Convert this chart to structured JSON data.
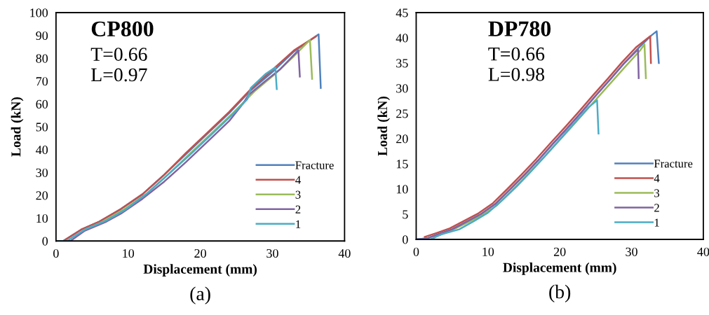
{
  "chart_data": [
    {
      "type": "line",
      "title": "CP800",
      "xlabel": "Displacement (mm)",
      "ylabel": "Load (kN)",
      "annotations": [
        "T=0.66",
        "L=0.97",
        "(a)"
      ],
      "xlim": [
        0,
        40
      ],
      "xticks": [
        0,
        10,
        20,
        30,
        40
      ],
      "ylim": [
        0,
        100
      ],
      "yticks": [
        0,
        10,
        20,
        30,
        40,
        50,
        60,
        70,
        80,
        90,
        100
      ],
      "grid": false,
      "legend": "bottom right",
      "marker": "none",
      "line_style": "solid",
      "series": [
        {
          "name": "Fracture",
          "color": "#4f81bd",
          "x": [
            0,
            1,
            3.5,
            6,
            9,
            12,
            15,
            18,
            21,
            24,
            27,
            30,
            33,
            36.4,
            36.7
          ],
          "values": [
            0,
            0,
            5,
            8.5,
            14,
            20.5,
            29,
            38,
            47,
            56,
            66,
            74,
            83,
            90.5,
            67
          ]
        },
        {
          "name": "4",
          "color": "#c0504d",
          "x": [
            0,
            1,
            3.5,
            6,
            9,
            12,
            15,
            18,
            21,
            24,
            27,
            30,
            33,
            36
          ],
          "values": [
            0,
            0,
            5,
            8.5,
            14,
            20.5,
            29,
            38.5,
            47.5,
            56.5,
            66.5,
            75,
            83.5,
            89.5
          ]
        },
        {
          "name": "3",
          "color": "#9bbb59",
          "x": [
            4,
            6.5,
            9.5,
            12.5,
            15.5,
            18.5,
            21.5,
            24.5,
            27.5,
            30.5,
            33,
            35.2,
            35.5
          ],
          "values": [
            5,
            8.5,
            14,
            20.5,
            29,
            38,
            47,
            56,
            65.5,
            73.5,
            81,
            88,
            71
          ]
        },
        {
          "name": "2",
          "color": "#8064a2",
          "x": [
            0,
            2,
            4,
            7,
            9,
            12,
            15,
            18,
            21,
            24,
            26,
            26.7,
            29,
            31,
            33.6,
            33.8
          ],
          "values": [
            0,
            0,
            4.5,
            8.5,
            12,
            18.5,
            26,
            34.5,
            43.5,
            52.5,
            60.5,
            64,
            70,
            75,
            83.5,
            72
          ]
        },
        {
          "name": "1",
          "color": "#4bacc6",
          "x": [
            0,
            1.5,
            4,
            7,
            9.5,
            12.5,
            15.5,
            18.5,
            21.5,
            24.5,
            26.5,
            27,
            29,
            30.4,
            30.6
          ],
          "values": [
            0,
            0,
            5,
            9,
            13.5,
            20.5,
            29,
            37.5,
            46.5,
            55.5,
            62,
            67,
            73,
            76,
            66.5
          ]
        }
      ]
    },
    {
      "type": "line",
      "title": "DP780",
      "xlabel": "Displacement (mm)",
      "ylabel": "Load (kN)",
      "annotations": [
        "T=0.66",
        "L=0.98",
        "(b)"
      ],
      "xlim": [
        0,
        40
      ],
      "xticks": [
        0,
        10,
        20,
        30,
        40
      ],
      "ylim": [
        0,
        45
      ],
      "yticks": [
        0,
        5,
        10,
        15,
        20,
        25,
        30,
        35,
        40,
        45
      ],
      "grid": false,
      "legend": "bottom right",
      "marker": "none",
      "line_style": "solid",
      "series": [
        {
          "name": "Fracture",
          "color": "#4f81bd",
          "x": [
            0,
            1.5,
            3,
            5,
            7,
            9,
            11,
            13,
            15,
            17,
            19,
            21,
            23,
            25,
            27,
            29,
            31,
            32.7,
            33.5,
            33.8
          ],
          "values": [
            0,
            0.2,
            1,
            2,
            3.5,
            5,
            7,
            9.8,
            12.7,
            15.7,
            18.9,
            22,
            25.2,
            28.5,
            31.7,
            35,
            38,
            40.4,
            41.3,
            35
          ]
        },
        {
          "name": "4",
          "color": "#c0504d",
          "x": [
            1.2,
            2.7,
            4.7,
            6.7,
            8.7,
            10.7,
            12.7,
            14.7,
            16.7,
            18.7,
            20.7,
            22.7,
            24.7,
            26.7,
            28.7,
            30.7,
            32.6,
            32.7
          ],
          "values": [
            0.5,
            1.2,
            2.2,
            3.7,
            5.2,
            7.2,
            10,
            12.9,
            15.9,
            19.1,
            22.2,
            25.4,
            28.7,
            31.9,
            35.2,
            38.2,
            40.3,
            35
          ]
        },
        {
          "name": "3",
          "color": "#9bbb59",
          "x": [
            2.5,
            3.5,
            5.2,
            7.2,
            9.2,
            11.2,
            13.2,
            15.2,
            17.2,
            19.2,
            21.2,
            23.2,
            25.2,
            27.2,
            29.2,
            31.2,
            31.8,
            32
          ],
          "values": [
            0.5,
            1,
            2,
            3.4,
            4.8,
            6.7,
            9.5,
            12.4,
            15.4,
            18.5,
            21.6,
            24.8,
            28,
            31.2,
            34.4,
            37.5,
            38.7,
            32
          ]
        },
        {
          "name": "2",
          "color": "#8064a2",
          "x": [
            0,
            1.5,
            3,
            5,
            7,
            9,
            11,
            13,
            15,
            17,
            19,
            21,
            23,
            25,
            27,
            29,
            30.9,
            31
          ],
          "values": [
            0,
            0.2,
            1,
            2,
            3.5,
            5,
            7,
            9.8,
            12.7,
            15.7,
            18.9,
            22,
            25.2,
            28.5,
            31.7,
            35,
            37.7,
            32
          ]
        },
        {
          "name": "1",
          "color": "#4bacc6",
          "x": [
            0,
            2,
            3.5,
            6,
            8,
            10,
            12,
            14,
            16,
            18,
            20,
            22,
            24,
            25.2,
            25.4
          ],
          "values": [
            0,
            0,
            1,
            2,
            3.6,
            5.3,
            7.8,
            10.5,
            13.5,
            16.6,
            19.8,
            23,
            26.2,
            27.6,
            21
          ]
        }
      ]
    }
  ]
}
